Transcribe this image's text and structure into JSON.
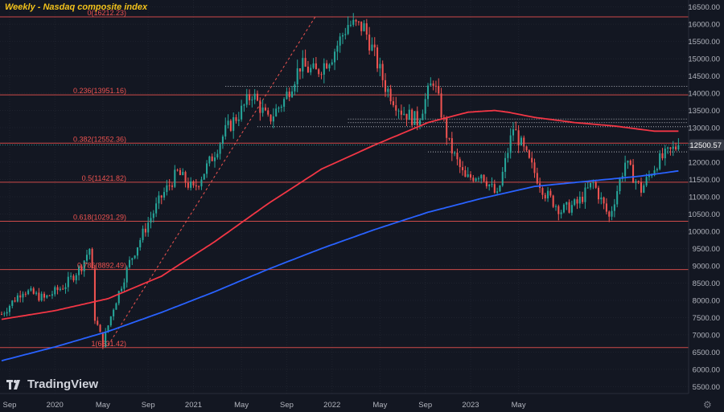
{
  "header": {
    "title": "Weekly - Nasdaq composite index"
  },
  "branding": {
    "logo_text": "TradingView",
    "logo_icon": "tradingview-logo-icon"
  },
  "controls": {
    "settings_icon": "gear-icon",
    "settings_glyph": "⚙"
  },
  "colors": {
    "background": "#131722",
    "grid": "#2a2e39",
    "up": "#26a69a",
    "down": "#ef5350",
    "ma_short": "#f23645",
    "ma_long": "#2962ff",
    "fib": "#ef5350",
    "axis_text": "#b2b5be",
    "price_tag": "#363a45",
    "title": "#f2c21b"
  },
  "chart_data": {
    "type": "candlestick",
    "title": "Weekly - Nasdaq composite index",
    "x_ticks": [
      "Sep",
      "2020",
      "May",
      "Sep",
      "2021",
      "May",
      "Sep",
      "2022",
      "May",
      "Sep",
      "2023",
      "May"
    ],
    "y_ticks": [
      "16500.00",
      "16000.00",
      "15500.00",
      "15000.00",
      "14500.00",
      "14000.00",
      "13500.00",
      "13000.00",
      "12500.00",
      "12000.00",
      "11500.00",
      "11000.00",
      "10500.00",
      "10000.00",
      "9500.00",
      "9000.00",
      "8500.00",
      "8000.00",
      "7500.00",
      "7000.00",
      "6500.00",
      "6000.00",
      "5500.00"
    ],
    "ylim": [
      5300,
      16700
    ],
    "last_price": "12500.57",
    "fib_levels": [
      {
        "label": "0(16212.23)",
        "value": 16212.23
      },
      {
        "label": "0.236(13951.16)",
        "value": 13951.16
      },
      {
        "label": "0.382(12552.36)",
        "value": 12552.36
      },
      {
        "label": "0.5(11421.82)",
        "value": 11421.82
      },
      {
        "label": "0.618(10291.29)",
        "value": 10291.29
      },
      {
        "label": "0.786(8892.49)",
        "value": 8892.49
      },
      {
        "label": "1(6631.42)",
        "value": 6631.42
      }
    ],
    "resistance_levels": [
      14200,
      13250,
      13150,
      13030,
      12300
    ],
    "series": [
      {
        "name": "",
        "kind": "price",
        "weeks": [
          0,
          8,
          16,
          24,
          30,
          33,
          34,
          35,
          38,
          42,
          48,
          54,
          60,
          66,
          72,
          78,
          84,
          90,
          94,
          100,
          106,
          112,
          118,
          124,
          130,
          136,
          139,
          144,
          150,
          156,
          162,
          168,
          174,
          180,
          186,
          192,
          198,
          204,
          210,
          216,
          222,
          228,
          234,
          240,
          246,
          250,
          254
        ],
        "values": [
          7600,
          8300,
          8050,
          8450,
          9000,
          9500,
          8800,
          7500,
          6750,
          7800,
          9100,
          10100,
          11000,
          11700,
          11200,
          12000,
          12900,
          13500,
          14000,
          13200,
          13800,
          14800,
          14600,
          15100,
          16000,
          15900,
          15300,
          14200,
          13500,
          13200,
          14400,
          12500,
          11500,
          11700,
          11000,
          13000,
          12000,
          11100,
          10600,
          10800,
          11400,
          10400,
          12000,
          11200,
          12000,
          12250,
          12500.57
        ]
      },
      {
        "name": "",
        "kind": "moving-average-short",
        "weeks": [
          0,
          20,
          40,
          60,
          80,
          100,
          120,
          140,
          160,
          175,
          185,
          190,
          200,
          215,
          230,
          245,
          254
        ],
        "values": [
          7450,
          7700,
          8050,
          8700,
          9700,
          10800,
          11800,
          12500,
          13150,
          13450,
          13500,
          13450,
          13300,
          13150,
          13050,
          12900,
          12900
        ]
      },
      {
        "name": "",
        "kind": "moving-average-long",
        "weeks": [
          0,
          20,
          40,
          60,
          80,
          100,
          120,
          140,
          160,
          180,
          200,
          220,
          240,
          254
        ],
        "values": [
          6250,
          6650,
          7100,
          7650,
          8250,
          8900,
          9500,
          10050,
          10550,
          10950,
          11300,
          11450,
          11600,
          11750
        ]
      }
    ]
  }
}
